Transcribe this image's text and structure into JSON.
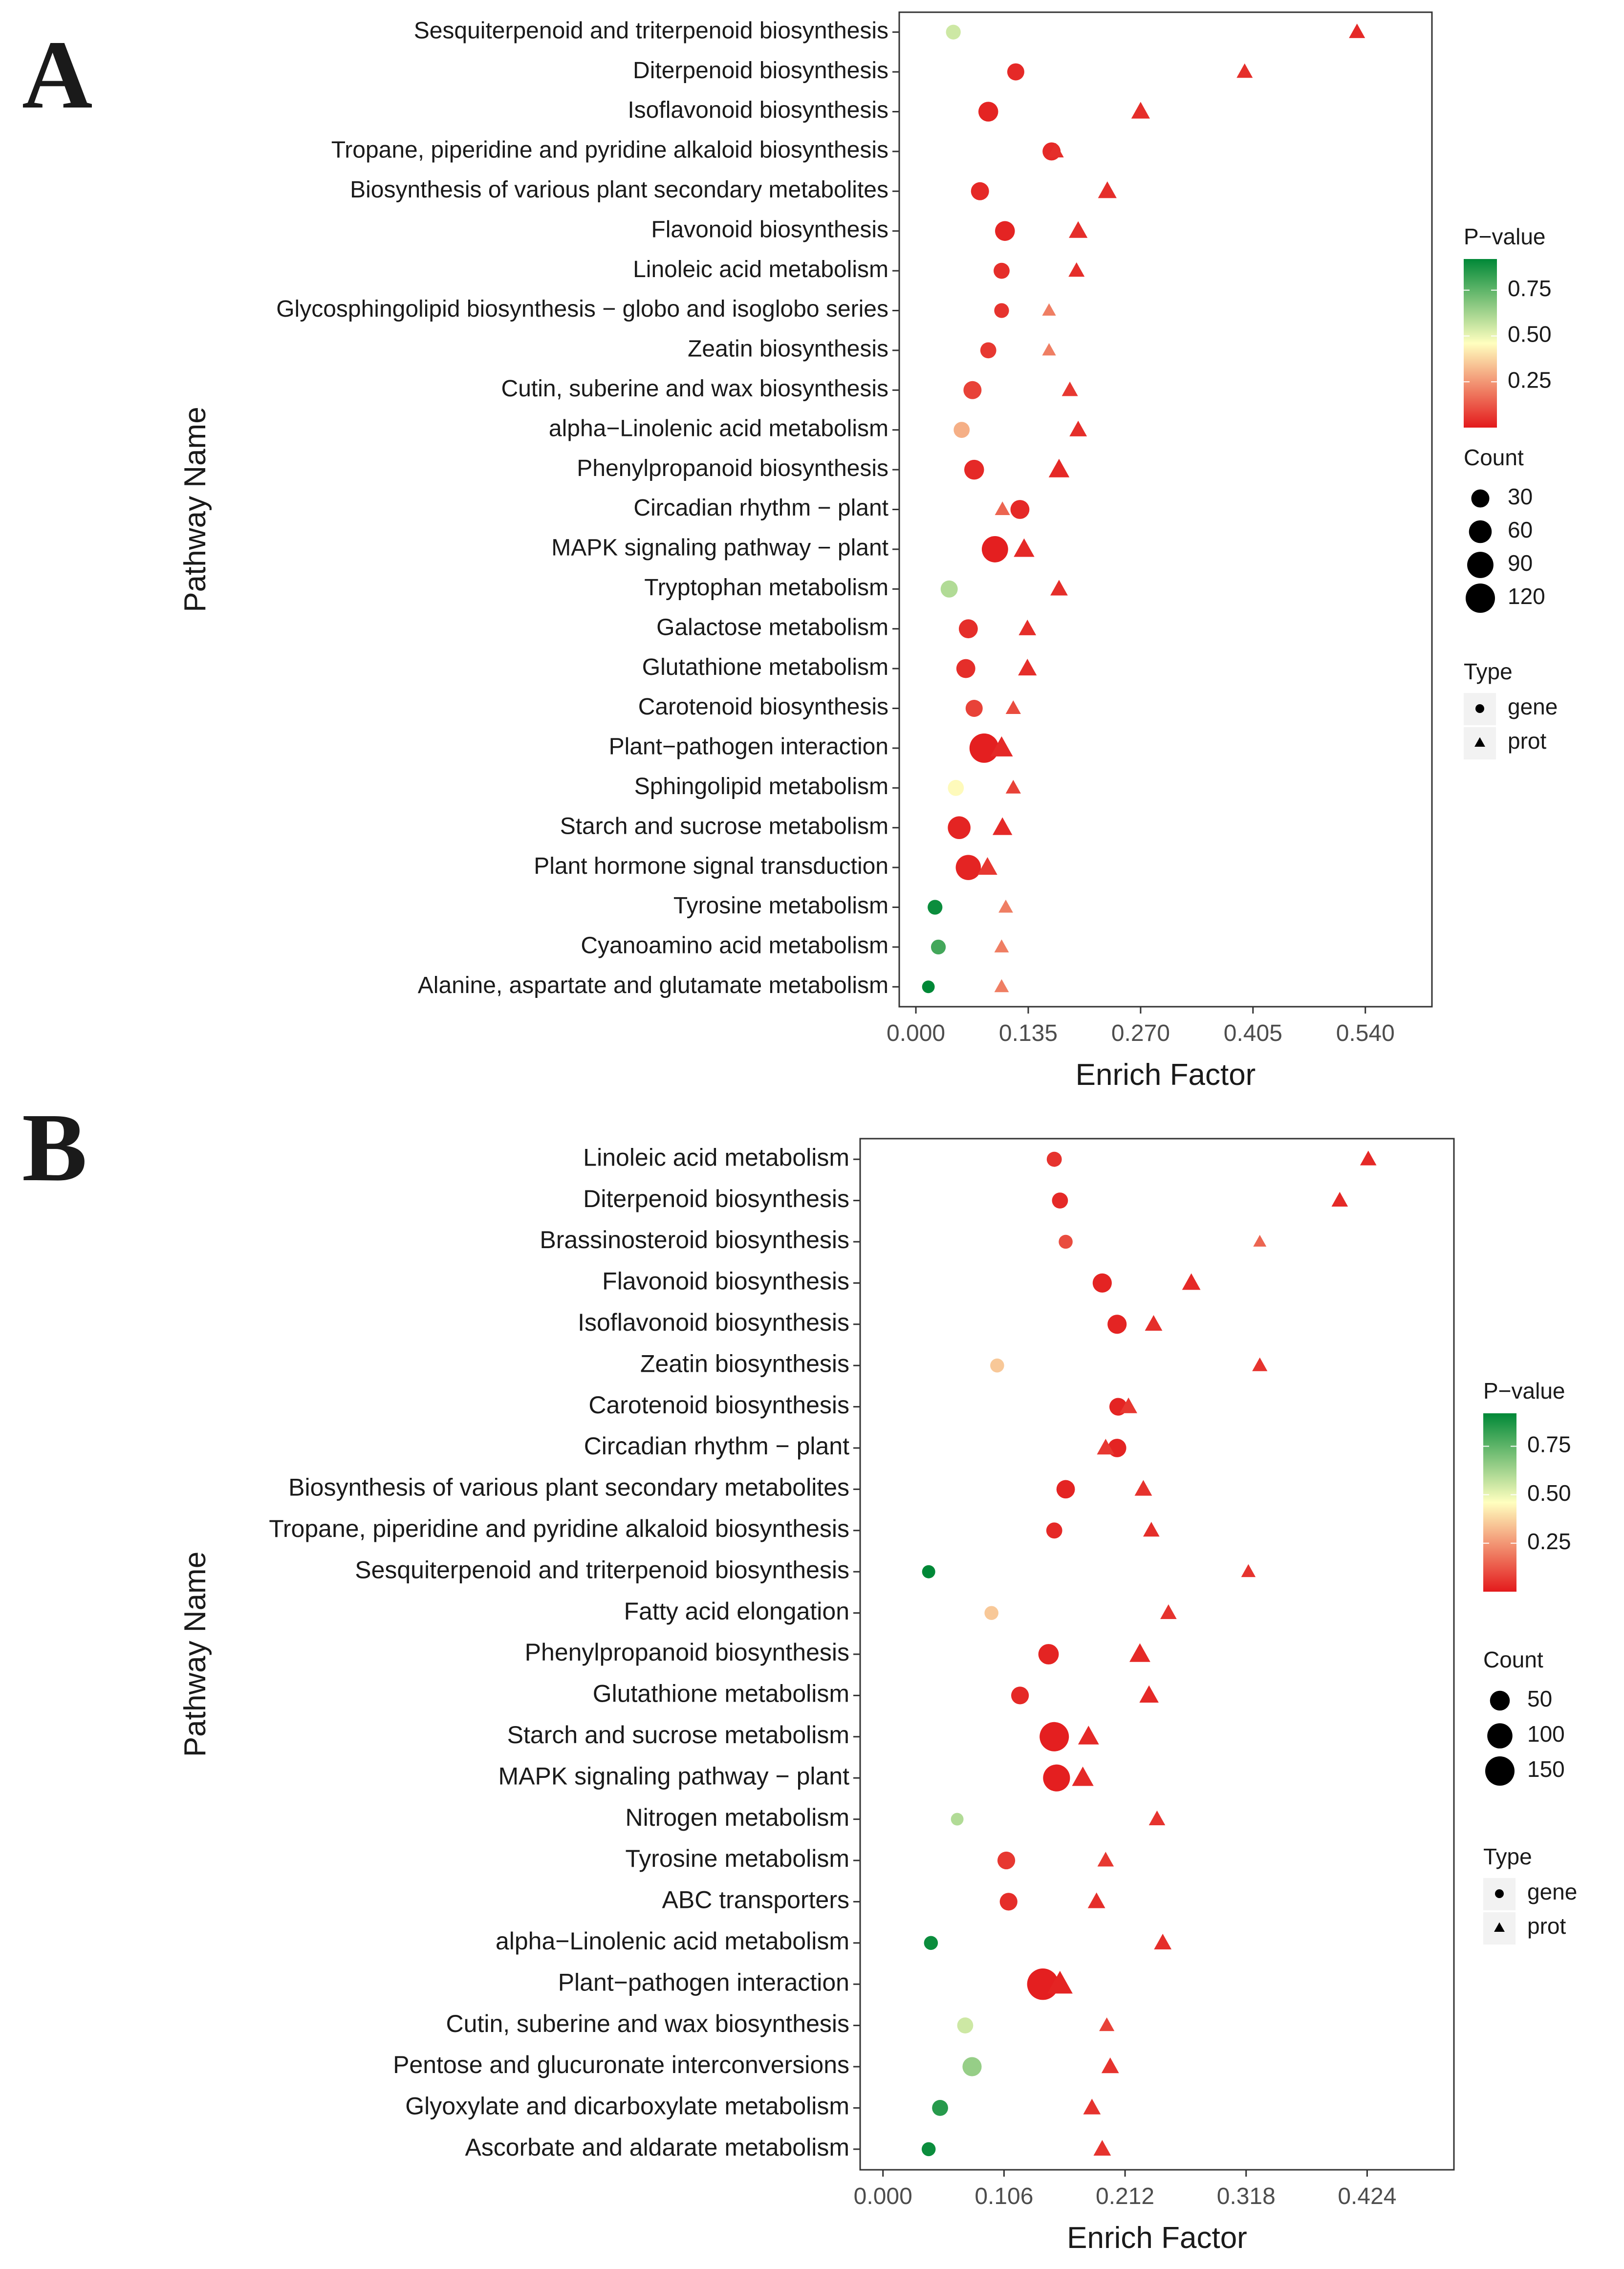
{
  "colors": {
    "low": "#e31a1c",
    "mid": "#ffffbf",
    "high": "#008837",
    "point": "#b2182b"
  },
  "chart_data": [
    {
      "type": "scatter",
      "panel_label": "A",
      "xlabel": "Enrich Factor",
      "ylabel": "Pathway Name",
      "xlim": [
        -0.02,
        0.62
      ],
      "xticks": [
        0.0,
        0.135,
        0.27,
        0.405,
        0.54
      ],
      "xtick_labels": [
        "0.000",
        "0.135",
        "0.270",
        "0.405",
        "0.540"
      ],
      "categories": [
        "Sesquiterpenoid and triterpenoid biosynthesis",
        "Diterpenoid biosynthesis",
        "Isoflavonoid biosynthesis",
        "Tropane, piperidine and pyridine alkaloid biosynthesis",
        "Biosynthesis of various plant secondary metabolites",
        "Flavonoid biosynthesis",
        "Linoleic acid metabolism",
        "Glycosphingolipid biosynthesis − globo and isoglobo series",
        "Zeatin biosynthesis",
        "Cutin, suberine and wax biosynthesis",
        "alpha−Linolenic acid metabolism",
        "Phenylpropanoid biosynthesis",
        "Circadian rhythm − plant",
        "MAPK signaling pathway − plant",
        "Tryptophan metabolism",
        "Galactose metabolism",
        "Glutathione metabolism",
        "Carotenoid biosynthesis",
        "Plant−pathogen interaction",
        "Sphingolipid metabolism",
        "Starch and sucrose metabolism",
        "Plant hormone signal transduction",
        "Tyrosine metabolism",
        "Cyanoamino acid metabolism",
        "Alanine, aspartate and glutamate metabolism"
      ],
      "series": [
        {
          "name": "gene",
          "points": [
            {
              "x": 0.045,
              "p": 0.55,
              "count": 15
            },
            {
              "x": 0.12,
              "p": 0.03,
              "count": 25
            },
            {
              "x": 0.087,
              "p": 0.02,
              "count": 40
            },
            {
              "x": 0.163,
              "p": 0.03,
              "count": 30
            },
            {
              "x": 0.077,
              "p": 0.03,
              "count": 30
            },
            {
              "x": 0.107,
              "p": 0.02,
              "count": 40
            },
            {
              "x": 0.103,
              "p": 0.04,
              "count": 20
            },
            {
              "x": 0.103,
              "p": 0.05,
              "count": 15
            },
            {
              "x": 0.087,
              "p": 0.06,
              "count": 20
            },
            {
              "x": 0.068,
              "p": 0.08,
              "count": 30
            },
            {
              "x": 0.055,
              "p": 0.3,
              "count": 20
            },
            {
              "x": 0.07,
              "p": 0.03,
              "count": 40
            },
            {
              "x": 0.125,
              "p": 0.03,
              "count": 35
            },
            {
              "x": 0.095,
              "p": 0.01,
              "count": 90
            },
            {
              "x": 0.04,
              "p": 0.6,
              "count": 25
            },
            {
              "x": 0.063,
              "p": 0.04,
              "count": 35
            },
            {
              "x": 0.06,
              "p": 0.04,
              "count": 35
            },
            {
              "x": 0.07,
              "p": 0.08,
              "count": 25
            },
            {
              "x": 0.082,
              "p": 0.01,
              "count": 120
            },
            {
              "x": 0.048,
              "p": 0.45,
              "count": 20
            },
            {
              "x": 0.052,
              "p": 0.02,
              "count": 60
            },
            {
              "x": 0.063,
              "p": 0.02,
              "count": 80
            },
            {
              "x": 0.023,
              "p": 0.9,
              "count": 15
            },
            {
              "x": 0.027,
              "p": 0.8,
              "count": 15
            },
            {
              "x": 0.015,
              "p": 0.95,
              "count": 8
            }
          ]
        },
        {
          "name": "prot",
          "points": [
            {
              "x": 0.53,
              "p": 0.03,
              "count": 15
            },
            {
              "x": 0.395,
              "p": 0.04,
              "count": 15
            },
            {
              "x": 0.27,
              "p": 0.04,
              "count": 25
            },
            {
              "x": 0.168,
              "p": 0.04,
              "count": 15
            },
            {
              "x": 0.23,
              "p": 0.04,
              "count": 25
            },
            {
              "x": 0.195,
              "p": 0.04,
              "count": 25
            },
            {
              "x": 0.193,
              "p": 0.04,
              "count": 15
            },
            {
              "x": 0.16,
              "p": 0.2,
              "count": 8
            },
            {
              "x": 0.16,
              "p": 0.2,
              "count": 8
            },
            {
              "x": 0.185,
              "p": 0.06,
              "count": 15
            },
            {
              "x": 0.195,
              "p": 0.04,
              "count": 20
            },
            {
              "x": 0.172,
              "p": 0.03,
              "count": 35
            },
            {
              "x": 0.104,
              "p": 0.15,
              "count": 12
            },
            {
              "x": 0.13,
              "p": 0.03,
              "count": 35
            },
            {
              "x": 0.172,
              "p": 0.04,
              "count": 20
            },
            {
              "x": 0.134,
              "p": 0.04,
              "count": 20
            },
            {
              "x": 0.134,
              "p": 0.04,
              "count": 25
            },
            {
              "x": 0.117,
              "p": 0.1,
              "count": 12
            },
            {
              "x": 0.103,
              "p": 0.03,
              "count": 45
            },
            {
              "x": 0.117,
              "p": 0.08,
              "count": 12
            },
            {
              "x": 0.104,
              "p": 0.03,
              "count": 30
            },
            {
              "x": 0.086,
              "p": 0.06,
              "count": 30
            },
            {
              "x": 0.108,
              "p": 0.2,
              "count": 10
            },
            {
              "x": 0.103,
              "p": 0.2,
              "count": 10
            },
            {
              "x": 0.103,
              "p": 0.2,
              "count": 10
            }
          ]
        }
      ],
      "legend": {
        "pvalue_title": "P−value",
        "pvalue_labels": [
          "0.75",
          "0.50",
          "0.25"
        ],
        "pvalue_ticks": [
          0.75,
          0.5,
          0.25
        ],
        "pvalue_range": [
          0.0,
          0.92
        ],
        "count_title": "Count",
        "count_values": [
          30,
          60,
          90,
          120
        ],
        "count_labels": [
          "30",
          "60",
          "90",
          "120"
        ],
        "type_title": "Type",
        "type_labels": [
          "gene",
          "prot"
        ],
        "placement": "right"
      }
    },
    {
      "type": "scatter",
      "panel_label": "B",
      "xlabel": "Enrich Factor",
      "ylabel": "Pathway Name",
      "xlim": [
        -0.02,
        0.5
      ],
      "xticks": [
        0.0,
        0.106,
        0.212,
        0.318,
        0.424
      ],
      "xtick_labels": [
        "0.000",
        "0.106",
        "0.212",
        "0.318",
        "0.424"
      ],
      "categories": [
        "Linoleic acid metabolism",
        "Diterpenoid biosynthesis",
        "Brassinosteroid biosynthesis",
        "Flavonoid biosynthesis",
        "Isoflavonoid biosynthesis",
        "Zeatin biosynthesis",
        "Carotenoid biosynthesis",
        "Circadian rhythm − plant",
        "Biosynthesis of various plant secondary metabolites",
        "Tropane, piperidine and pyridine alkaloid biosynthesis",
        "Sesquiterpenoid and triterpenoid biosynthesis",
        "Fatty acid elongation",
        "Phenylpropanoid biosynthesis",
        "Glutathione metabolism",
        "Starch and sucrose metabolism",
        "MAPK signaling pathway − plant",
        "Nitrogen metabolism",
        "Tyrosine metabolism",
        "ABC transporters",
        "alpha−Linolenic acid metabolism",
        "Plant−pathogen interaction",
        "Cutin, suberine and wax biosynthesis",
        "Pentose and glucuronate interconversions",
        "Glyoxylate and dicarboxylate metabolism",
        "Ascorbate and aldarate metabolism"
      ],
      "series": [
        {
          "name": "gene",
          "points": [
            {
              "x": 0.15,
              "p": 0.05,
              "count": 20
            },
            {
              "x": 0.155,
              "p": 0.03,
              "count": 25
            },
            {
              "x": 0.16,
              "p": 0.1,
              "count": 15
            },
            {
              "x": 0.192,
              "p": 0.02,
              "count": 45
            },
            {
              "x": 0.205,
              "p": 0.02,
              "count": 45
            },
            {
              "x": 0.1,
              "p": 0.35,
              "count": 15
            },
            {
              "x": 0.206,
              "p": 0.02,
              "count": 35
            },
            {
              "x": 0.205,
              "p": 0.02,
              "count": 40
            },
            {
              "x": 0.16,
              "p": 0.02,
              "count": 40
            },
            {
              "x": 0.15,
              "p": 0.03,
              "count": 25
            },
            {
              "x": 0.04,
              "p": 0.92,
              "count": 12
            },
            {
              "x": 0.095,
              "p": 0.35,
              "count": 15
            },
            {
              "x": 0.145,
              "p": 0.02,
              "count": 55
            },
            {
              "x": 0.12,
              "p": 0.03,
              "count": 35
            },
            {
              "x": 0.15,
              "p": 0.01,
              "count": 150
            },
            {
              "x": 0.152,
              "p": 0.01,
              "count": 120
            },
            {
              "x": 0.065,
              "p": 0.6,
              "count": 10
            },
            {
              "x": 0.108,
              "p": 0.06,
              "count": 35
            },
            {
              "x": 0.11,
              "p": 0.04,
              "count": 35
            },
            {
              "x": 0.042,
              "p": 0.9,
              "count": 15
            },
            {
              "x": 0.14,
              "p": 0.01,
              "count": 180
            },
            {
              "x": 0.072,
              "p": 0.55,
              "count": 25
            },
            {
              "x": 0.078,
              "p": 0.65,
              "count": 45
            },
            {
              "x": 0.05,
              "p": 0.85,
              "count": 25
            },
            {
              "x": 0.04,
              "p": 0.9,
              "count": 15
            }
          ]
        },
        {
          "name": "prot",
          "points": [
            {
              "x": 0.425,
              "p": 0.03,
              "count": 20
            },
            {
              "x": 0.4,
              "p": 0.03,
              "count": 20
            },
            {
              "x": 0.33,
              "p": 0.15,
              "count": 8
            },
            {
              "x": 0.27,
              "p": 0.03,
              "count": 30
            },
            {
              "x": 0.237,
              "p": 0.04,
              "count": 25
            },
            {
              "x": 0.33,
              "p": 0.05,
              "count": 15
            },
            {
              "x": 0.215,
              "p": 0.06,
              "count": 25
            },
            {
              "x": 0.195,
              "p": 0.06,
              "count": 25
            },
            {
              "x": 0.228,
              "p": 0.05,
              "count": 25
            },
            {
              "x": 0.235,
              "p": 0.04,
              "count": 20
            },
            {
              "x": 0.32,
              "p": 0.05,
              "count": 12
            },
            {
              "x": 0.25,
              "p": 0.05,
              "count": 20
            },
            {
              "x": 0.225,
              "p": 0.03,
              "count": 45
            },
            {
              "x": 0.233,
              "p": 0.03,
              "count": 35
            },
            {
              "x": 0.18,
              "p": 0.03,
              "count": 45
            },
            {
              "x": 0.175,
              "p": 0.03,
              "count": 50
            },
            {
              "x": 0.24,
              "p": 0.05,
              "count": 20
            },
            {
              "x": 0.195,
              "p": 0.06,
              "count": 20
            },
            {
              "x": 0.187,
              "p": 0.04,
              "count": 25
            },
            {
              "x": 0.245,
              "p": 0.04,
              "count": 25
            },
            {
              "x": 0.155,
              "p": 0.02,
              "count": 80
            },
            {
              "x": 0.196,
              "p": 0.08,
              "count": 15
            },
            {
              "x": 0.199,
              "p": 0.05,
              "count": 25
            },
            {
              "x": 0.183,
              "p": 0.05,
              "count": 25
            },
            {
              "x": 0.192,
              "p": 0.05,
              "count": 25
            }
          ]
        }
      ],
      "legend": {
        "pvalue_title": "P−value",
        "pvalue_labels": [
          "0.75",
          "0.50",
          "0.25"
        ],
        "pvalue_ticks": [
          0.75,
          0.5,
          0.25
        ],
        "pvalue_range": [
          0.0,
          0.92
        ],
        "count_title": "Count",
        "count_values": [
          50,
          100,
          150
        ],
        "count_labels": [
          "50",
          "100",
          "150"
        ],
        "type_title": "Type",
        "type_labels": [
          "gene",
          "prot"
        ],
        "placement": "right"
      }
    }
  ]
}
